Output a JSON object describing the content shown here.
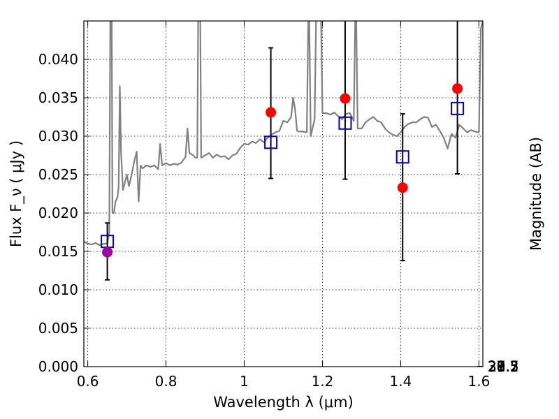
{
  "chart_data": {
    "type": "scatter",
    "xlabel": "Wavelength  λ (μm)",
    "ylabel": "Flux  F_ν  ( μJy )",
    "y2label": "Magnitude (AB)",
    "xlim": [
      0.59,
      1.61
    ],
    "ylim": [
      0.0,
      0.045
    ],
    "x_ticks": [
      {
        "value": 0.6,
        "label": "0.6"
      },
      {
        "value": 0.8,
        "label": "0.8"
      },
      {
        "value": 1.0,
        "label": "1"
      },
      {
        "value": 1.2,
        "label": "1.2"
      },
      {
        "value": 1.4,
        "label": "1.4"
      },
      {
        "value": 1.6,
        "label": "1.6"
      }
    ],
    "y_ticks": [
      {
        "value": 0.0,
        "label": "0.000"
      },
      {
        "value": 0.005,
        "label": "0.005"
      },
      {
        "value": 0.01,
        "label": "0.010"
      },
      {
        "value": 0.015,
        "label": "0.015"
      },
      {
        "value": 0.02,
        "label": "0.020"
      },
      {
        "value": 0.025,
        "label": "0.025"
      },
      {
        "value": 0.03,
        "label": "0.030"
      },
      {
        "value": 0.035,
        "label": "0.035"
      },
      {
        "value": 0.04,
        "label": "0.040"
      }
    ],
    "mag_ticks": [
      {
        "value": 27.3,
        "label": "27.3"
      },
      {
        "value": 27.5,
        "label": "27.5"
      },
      {
        "value": 27.7,
        "label": "27.7"
      },
      {
        "value": 28.0,
        "label": "28"
      },
      {
        "value": 28.2,
        "label": "28.2"
      },
      {
        "value": 28.5,
        "label": "28.5"
      },
      {
        "value": 29.0,
        "label": "29"
      },
      {
        "value": 29.5,
        "label": "29.5"
      },
      {
        "value": 30.0,
        "label": "30"
      },
      {
        "value": 31.0,
        "label": "31"
      }
    ],
    "grid": true,
    "colors": {
      "spectrum": "#808080",
      "observed": "#ff0000",
      "observed_first": "#a000a0",
      "model": "#0000cc",
      "errorbar": "#000000"
    },
    "series": [
      {
        "kind": "line",
        "points": [
          [
            0.59,
            0.0163
          ],
          [
            0.6,
            0.016
          ],
          [
            0.61,
            0.0159
          ],
          [
            0.62,
            0.0161
          ],
          [
            0.63,
            0.0158
          ],
          [
            0.64,
            0.016
          ],
          [
            0.65,
            0.016
          ],
          [
            0.655,
            0.0175
          ],
          [
            0.658,
            0.05
          ],
          [
            0.661,
            0.05
          ],
          [
            0.663,
            0.02
          ],
          [
            0.667,
            0.02
          ],
          [
            0.671,
            0.0215
          ],
          [
            0.676,
            0.022
          ],
          [
            0.679,
            0.0235
          ],
          [
            0.682,
            0.0365
          ],
          [
            0.685,
            0.028
          ],
          [
            0.69,
            0.023
          ],
          [
            0.7,
            0.025
          ],
          [
            0.705,
            0.0235
          ],
          [
            0.71,
            0.0245
          ],
          [
            0.72,
            0.027
          ],
          [
            0.725,
            0.028
          ],
          [
            0.73,
            0.0215
          ],
          [
            0.735,
            0.0262
          ],
          [
            0.74,
            0.0258
          ],
          [
            0.75,
            0.0262
          ],
          [
            0.76,
            0.026
          ],
          [
            0.77,
            0.0262
          ],
          [
            0.78,
            0.0257
          ],
          [
            0.785,
            0.029
          ],
          [
            0.79,
            0.0262
          ],
          [
            0.8,
            0.0265
          ],
          [
            0.81,
            0.0262
          ],
          [
            0.82,
            0.0264
          ],
          [
            0.83,
            0.0263
          ],
          [
            0.84,
            0.0266
          ],
          [
            0.85,
            0.0273
          ],
          [
            0.855,
            0.031
          ],
          [
            0.86,
            0.0278
          ],
          [
            0.87,
            0.0275
          ],
          [
            0.875,
            0.0272
          ],
          [
            0.88,
            0.0272
          ],
          [
            0.883,
            0.05
          ],
          [
            0.887,
            0.05
          ],
          [
            0.89,
            0.0272
          ],
          [
            0.9,
            0.0275
          ],
          [
            0.91,
            0.0278
          ],
          [
            0.92,
            0.0272
          ],
          [
            0.93,
            0.0276
          ],
          [
            0.94,
            0.0273
          ],
          [
            0.95,
            0.0274
          ],
          [
            0.96,
            0.027
          ],
          [
            0.97,
            0.0275
          ],
          [
            0.98,
            0.0277
          ],
          [
            0.99,
            0.0285
          ],
          [
            1.0,
            0.029
          ],
          [
            1.01,
            0.0289
          ],
          [
            1.02,
            0.0293
          ],
          [
            1.03,
            0.0291
          ],
          [
            1.04,
            0.0296
          ],
          [
            1.05,
            0.0292
          ],
          [
            1.06,
            0.0298
          ],
          [
            1.07,
            0.0302
          ],
          [
            1.08,
            0.0305
          ],
          [
            1.09,
            0.0307
          ],
          [
            1.1,
            0.032
          ],
          [
            1.11,
            0.0318
          ],
          [
            1.12,
            0.0325
          ],
          [
            1.125,
            0.035
          ],
          [
            1.13,
            0.0335
          ],
          [
            1.135,
            0.0307
          ],
          [
            1.14,
            0.0306
          ],
          [
            1.15,
            0.0306
          ],
          [
            1.16,
            0.0305
          ],
          [
            1.165,
            0.05
          ],
          [
            1.17,
            0.03
          ],
          [
            1.18,
            0.0322
          ],
          [
            1.185,
            0.05
          ],
          [
            1.195,
            0.05
          ],
          [
            1.2,
            0.033
          ],
          [
            1.21,
            0.033
          ],
          [
            1.22,
            0.0328
          ],
          [
            1.23,
            0.0331
          ],
          [
            1.24,
            0.0326
          ],
          [
            1.25,
            0.0322
          ],
          [
            1.26,
            0.0329
          ],
          [
            1.27,
            0.033
          ],
          [
            1.28,
            0.032
          ],
          [
            1.285,
            0.05
          ],
          [
            1.29,
            0.031
          ],
          [
            1.3,
            0.031
          ],
          [
            1.31,
            0.0318
          ],
          [
            1.32,
            0.0322
          ],
          [
            1.33,
            0.0325
          ],
          [
            1.34,
            0.032
          ],
          [
            1.35,
            0.0318
          ],
          [
            1.36,
            0.031
          ],
          [
            1.37,
            0.0305
          ],
          [
            1.38,
            0.0302
          ],
          [
            1.39,
            0.03
          ],
          [
            1.4,
            0.0305
          ],
          [
            1.41,
            0.0312
          ],
          [
            1.42,
            0.0316
          ],
          [
            1.43,
            0.0318
          ],
          [
            1.44,
            0.0318
          ],
          [
            1.45,
            0.0322
          ],
          [
            1.46,
            0.0325
          ],
          [
            1.47,
            0.0324
          ],
          [
            1.48,
            0.0312
          ],
          [
            1.49,
            0.0315
          ],
          [
            1.5,
            0.0307
          ],
          [
            1.51,
            0.0298
          ],
          [
            1.52,
            0.0284
          ],
          [
            1.53,
            0.0303
          ],
          [
            1.54,
            0.0298
          ],
          [
            1.55,
            0.0315
          ],
          [
            1.56,
            0.031
          ],
          [
            1.57,
            0.0305
          ],
          [
            1.58,
            0.0308
          ],
          [
            1.59,
            0.0306
          ],
          [
            1.6,
            0.0305
          ],
          [
            1.605,
            0.044
          ],
          [
            1.61,
            0.045
          ]
        ]
      },
      {
        "kind": "observed",
        "points": [
          {
            "x": 0.65,
            "y": 0.0149,
            "err_low": 0.0113,
            "err_high": 0.0187
          },
          {
            "x": 1.068,
            "y": 0.0331,
            "err_low": 0.0245,
            "err_high": 0.0415
          },
          {
            "x": 1.258,
            "y": 0.0349,
            "err_low": 0.0244,
            "err_high": 0.046
          },
          {
            "x": 1.405,
            "y": 0.0233,
            "err_low": 0.0138,
            "err_high": 0.0329
          },
          {
            "x": 1.545,
            "y": 0.0362,
            "err_low": 0.0251,
            "err_high": 0.046
          }
        ]
      },
      {
        "kind": "model",
        "points": [
          {
            "x": 0.65,
            "y": 0.0163
          },
          {
            "x": 1.068,
            "y": 0.0292
          },
          {
            "x": 1.258,
            "y": 0.0317
          },
          {
            "x": 1.405,
            "y": 0.0273
          },
          {
            "x": 1.545,
            "y": 0.0336
          }
        ]
      }
    ]
  }
}
